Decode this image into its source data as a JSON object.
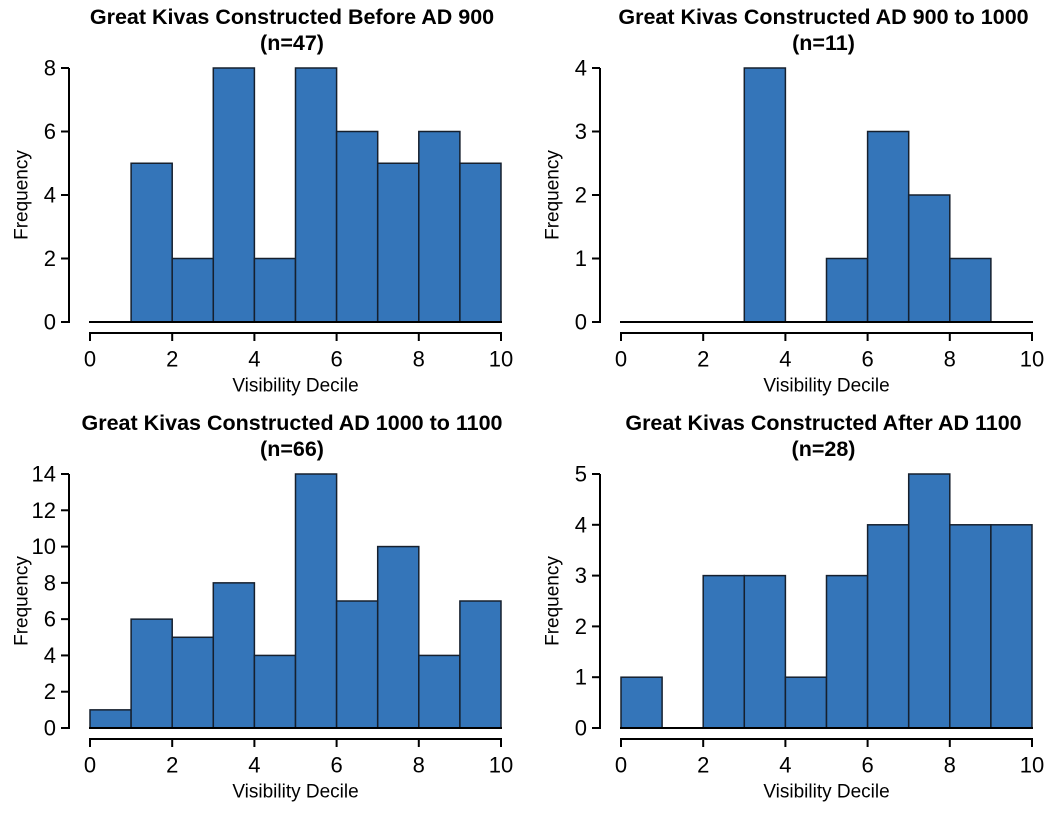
{
  "figure": {
    "background": "#ffffff",
    "bar_fill": "#3475b9",
    "bar_stroke": "#16202e",
    "axis_color": "#000000",
    "text_color": "#000000"
  },
  "chart_data": [
    {
      "type": "bar",
      "subtype": "histogram",
      "title": "Great Kivas Constructed Before AD 900",
      "subtitle": "(n=47)",
      "n": 47,
      "xlabel": "Visibility Decile",
      "ylabel": "Frequency",
      "bin_edges": [
        0,
        1,
        2,
        3,
        4,
        5,
        6,
        7,
        8,
        9,
        10
      ],
      "values": [
        0,
        5,
        2,
        8,
        2,
        8,
        6,
        5,
        6,
        5
      ],
      "xlim": [
        0,
        10
      ],
      "ylim": [
        0,
        8
      ],
      "xticks": [
        0,
        2,
        4,
        6,
        8,
        10
      ],
      "yticks": [
        0,
        2,
        4,
        6,
        8
      ],
      "grid": false,
      "legend": false
    },
    {
      "type": "bar",
      "subtype": "histogram",
      "title": "Great Kivas Constructed AD 900 to 1000",
      "subtitle": "(n=11)",
      "n": 11,
      "xlabel": "Visibility Decile",
      "ylabel": "Frequency",
      "bin_edges": [
        0,
        1,
        2,
        3,
        4,
        5,
        6,
        7,
        8,
        9,
        10
      ],
      "values": [
        0,
        0,
        0,
        4,
        0,
        1,
        3,
        2,
        1,
        0
      ],
      "xlim": [
        0,
        10
      ],
      "ylim": [
        0,
        4
      ],
      "xticks": [
        0,
        2,
        4,
        6,
        8,
        10
      ],
      "yticks": [
        0,
        1,
        2,
        3,
        4
      ],
      "grid": false,
      "legend": false
    },
    {
      "type": "bar",
      "subtype": "histogram",
      "title": "Great Kivas Constructed AD 1000 to 1100",
      "subtitle": "(n=66)",
      "n": 66,
      "xlabel": "Visibility Decile",
      "ylabel": "Frequency",
      "bin_edges": [
        0,
        1,
        2,
        3,
        4,
        5,
        6,
        7,
        8,
        9,
        10
      ],
      "values": [
        1,
        6,
        5,
        8,
        4,
        14,
        7,
        10,
        4,
        7
      ],
      "xlim": [
        0,
        10
      ],
      "ylim": [
        0,
        14
      ],
      "xticks": [
        0,
        2,
        4,
        6,
        8,
        10
      ],
      "yticks": [
        0,
        2,
        4,
        6,
        8,
        10,
        12,
        14
      ],
      "grid": false,
      "legend": false
    },
    {
      "type": "bar",
      "subtype": "histogram",
      "title": "Great Kivas Constructed After AD 1100",
      "subtitle": "(n=28)",
      "n": 28,
      "xlabel": "Visibility Decile",
      "ylabel": "Frequency",
      "bin_edges": [
        0,
        1,
        2,
        3,
        4,
        5,
        6,
        7,
        8,
        9,
        10
      ],
      "values": [
        1,
        0,
        3,
        3,
        1,
        3,
        4,
        5,
        4,
        4
      ],
      "xlim": [
        0,
        10
      ],
      "ylim": [
        0,
        5
      ],
      "xticks": [
        0,
        2,
        4,
        6,
        8,
        10
      ],
      "yticks": [
        0,
        1,
        2,
        3,
        4,
        5
      ],
      "grid": false,
      "legend": false
    }
  ]
}
